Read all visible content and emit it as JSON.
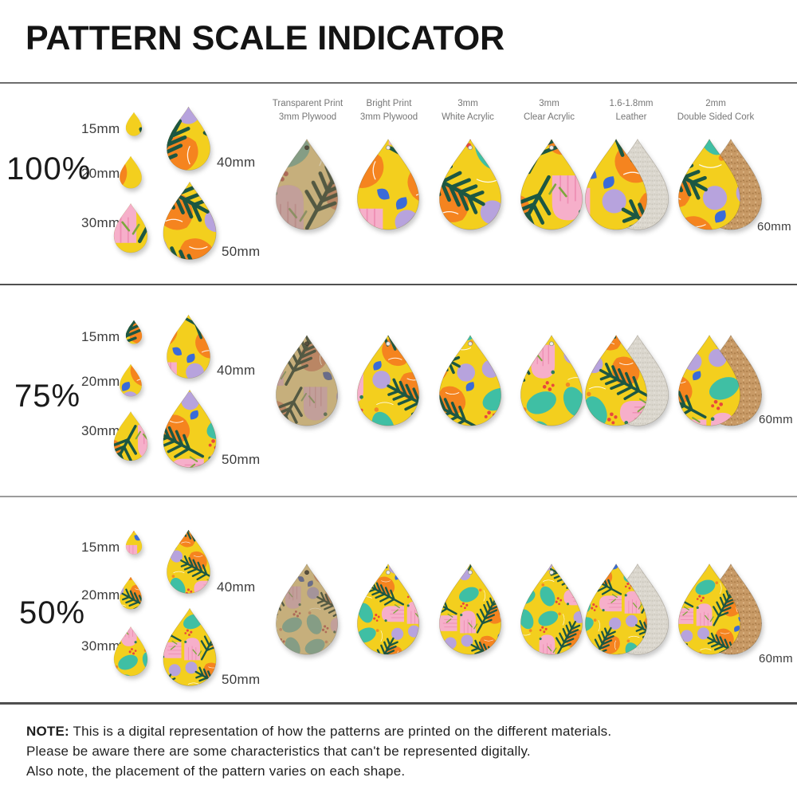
{
  "title": "PATTERN SCALE INDICATOR",
  "rows": [
    {
      "scale": "100%",
      "sizes": [
        "15mm",
        "20mm",
        "30mm",
        "40mm",
        "50mm",
        "60mm"
      ]
    },
    {
      "scale": "75%",
      "sizes": [
        "15mm",
        "20mm",
        "30mm",
        "40mm",
        "50mm",
        "60mm"
      ]
    },
    {
      "scale": "50%",
      "sizes": [
        "15mm",
        "20mm",
        "30mm",
        "40mm",
        "50mm",
        "60mm"
      ]
    }
  ],
  "columns": [
    {
      "line1": "Transparent Print",
      "line2": "3mm Plywood"
    },
    {
      "line1": "Bright Print",
      "line2": "3mm Plywood"
    },
    {
      "line1": "3mm",
      "line2": "White Acrylic"
    },
    {
      "line1": "3mm",
      "line2": "Clear Acrylic"
    },
    {
      "line1": "1.6-1.8mm",
      "line2": "Leather"
    },
    {
      "line1": "2mm",
      "line2": "Double Sided Cork"
    }
  ],
  "note": {
    "label": "NOTE:",
    "lines": [
      "This is a digital representation of how the patterns are printed on the different materials.",
      "Please be aware there are some characteristics that can't be represented digitally.",
      "Also note, the placement of the pattern varies on each shape."
    ]
  },
  "pattern_palette": {
    "yellow": "#F3CF1E",
    "dark_green": "#1C5743",
    "teal": "#3FBFA4",
    "orange": "#F5841F",
    "pink": "#F6AFCA",
    "lilac": "#B7A3DD",
    "red": "#E8483B",
    "blue": "#3A6BD8",
    "wood_tint": "#8A6B3A",
    "leather_back": "#DBD7CE",
    "cork_back": "#C89A66"
  }
}
